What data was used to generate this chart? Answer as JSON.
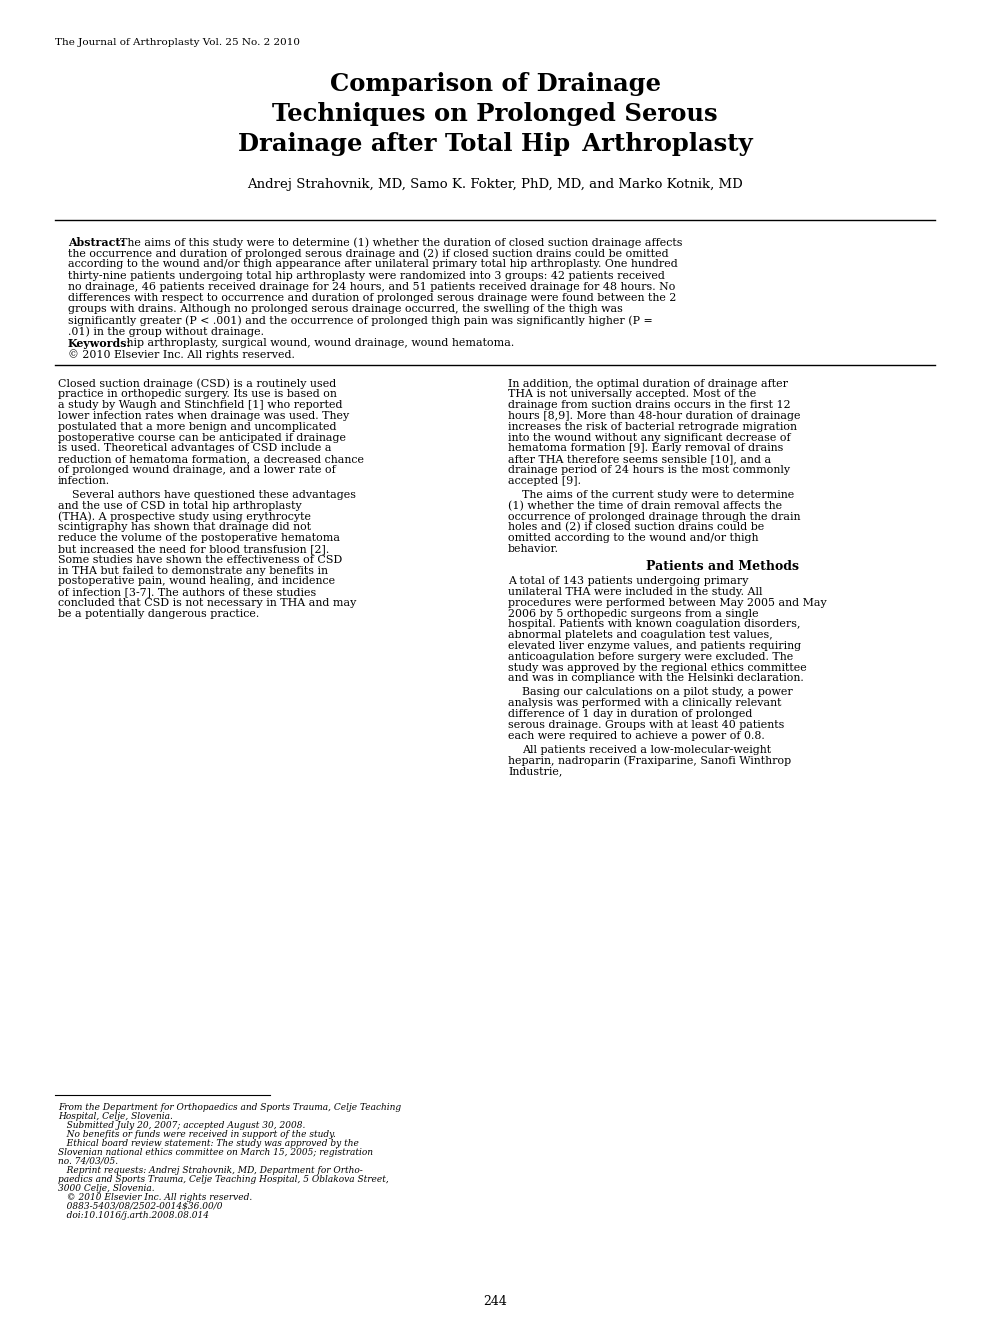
{
  "journal_header": "The Journal of Arthroplasty Vol. 25 No. 2 2010",
  "title_line1": "Comparison of Drainage",
  "title_line2": "Techniques on Prolonged Serous",
  "title_line3": "Drainage after Total Hip Arthroplasty",
  "authors": "Andrej Strahovnik, MD, Samo K. Fokter, PhD, MD, and Marko Kotnik, MD",
  "abstract_label": "Abstract:",
  "abstract_text": "The aims of this study were to determine (1) whether the duration of closed suction drainage affects the occurrence and duration of prolonged serous drainage and (2) if closed suction drains could be omitted according to the wound and/or thigh appearance after unilateral primary total hip arthroplasty. One hundred thirty-nine patients undergoing total hip arthroplasty were randomized into 3 groups: 42 patients received no drainage, 46 patients received drainage for 24 hours, and 51 patients received drainage for 48 hours. No differences with respect to occurrence and duration of prolonged serous drainage were found between the 2 groups with drains. Although no prolonged serous drainage occurred, the swelling of the thigh was significantly greater (P < .001) and the occurrence of prolonged thigh pain was significantly higher (P = .01) in the group without drainage.",
  "keywords_label": "Keywords:",
  "keywords_text": " hip arthroplasty, surgical wound, wound drainage, wound hematoma.",
  "copyright": "© 2010 Elsevier Inc. All rights reserved.",
  "col1_para1": "Closed suction drainage (CSD) is a routinely used practice in orthopedic surgery. Its use is based on a study by Waugh and Stinchfield [1] who reported lower infection rates when drainage was used. They postulated that a more benign and uncomplicated postoperative course can be anticipated if drainage is used. Theoretical advantages of CSD include a reduction of hematoma formation, a decreased chance of prolonged wound drainage, and a lower rate of infection.",
  "col1_para2": "Several authors have questioned these advantages and the use of CSD in total hip arthroplasty (THA). A prospective study using erythrocyte scintigraphy has shown that drainage did not reduce the volume of the postoperative hematoma but increased the need for blood transfusion [2]. Some studies have shown the effectiveness of CSD in THA but failed to demonstrate any benefits in postoperative pain, wound healing, and incidence of infection [3-7]. The authors of these studies concluded that CSD is not necessary in THA and may be a potentially dangerous practice.",
  "col2_para1": "In addition, the optimal duration of drainage after THA is not universally accepted. Most of the drainage from suction drains occurs in the first 12 hours [8,9]. More than 48-hour duration of drainage increases the risk of bacterial retrograde migration into the wound without any significant decrease of hematoma formation [9]. Early removal of drains after THA therefore seems sensible [10], and a drainage period of 24 hours is the most commonly accepted [9].",
  "col2_para2": "The aims of the current study were to determine (1) whether the time of drain removal affects the occurrence of prolonged drainage through the drain holes and (2) if closed suction drains could be omitted according to the wound and/or thigh behavior.",
  "section_header": "Patients and Methods",
  "col2_methods_para1": "A total of 143 patients undergoing primary unilateral THA were included in the study. All procedures were performed between May 2005 and May 2006 by 5 orthopedic surgeons from a single hospital. Patients with known coagulation disorders, abnormal platelets and coagulation test values, elevated liver enzyme values, and patients requiring anticoagulation before surgery were excluded. The study was approved by the regional ethics committee and was in compliance with the Helsinki declaration.",
  "col2_methods_para2": "Basing our calculations on a pilot study, a power analysis was performed with a clinically relevant difference of 1 day in duration of prolonged serous drainage. Groups with at least 40 patients each were required to achieve a power of 0.8.",
  "col2_methods_para3": "All patients received a low-molecular-weight heparin, nadroparin (Fraxiparine, Sanofi Winthrop Industrie,",
  "footnote_lines": [
    "From the Department for Orthopaedics and Sports Trauma, Celje Teaching",
    "Hospital, Celje, Slovenia.",
    "   Submitted July 20, 2007; accepted August 30, 2008.",
    "   No benefits or funds were received in support of the study.",
    "   Ethical board review statement: The study was approved by the",
    "Slovenian national ethics committee on March 15, 2005; registration",
    "no. 74/03/05.",
    "   Reprint requests: Andrej Strahovnik, MD, Department for Ortho-",
    "paedics and Sports Trauma, Celje Teaching Hospital, 5 Oblakova Street,",
    "3000 Celje, Slovenia.",
    "   © 2010 Elsevier Inc. All rights reserved.",
    "   0883-5403/08/2502-0014$36.00/0",
    "   doi:10.1016/j.arth.2008.08.014"
  ],
  "page_number": "244",
  "bg_color": "#ffffff",
  "text_color": "#000000"
}
